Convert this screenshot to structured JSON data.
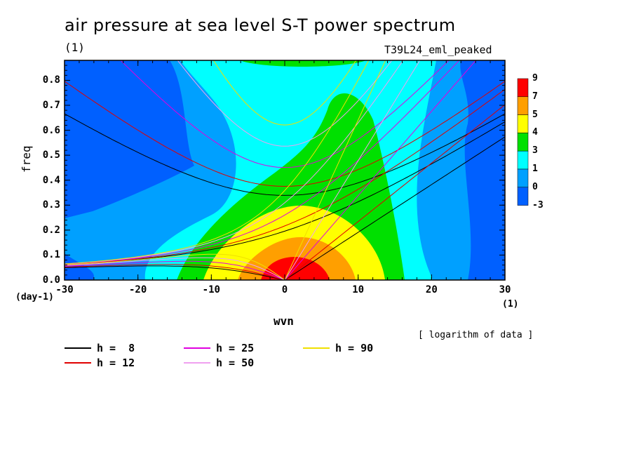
{
  "title": "air pressure at sea level S-T power spectrum",
  "title_unit": "(1)",
  "experiment": "T39L24_eml_peaked",
  "note": "[ logarithm of data ]",
  "chart_data": {
    "type": "contour",
    "xlabel": "wvn",
    "xunit": "(1)",
    "ylabel": "freq",
    "yunit": "(day-1)",
    "xlim": [
      -30,
      30
    ],
    "ylim": [
      0,
      0.88
    ],
    "xticks": [
      -30,
      -20,
      -10,
      0,
      10,
      20,
      30
    ],
    "yticks": [
      0.0,
      0.1,
      0.2,
      0.3,
      0.4,
      0.5,
      0.6,
      0.7,
      0.8
    ],
    "colorbar": {
      "labels": [
        "9",
        "7",
        "5",
        "4",
        "3",
        "1",
        "0",
        "-3"
      ],
      "colors": [
        "#ff0000",
        "#ff9f00",
        "#ffff00",
        "#00e000",
        "#00ffff",
        "#00a0ff",
        "#0060ff"
      ]
    },
    "dispersion_curves": [
      {
        "name": "h =  8",
        "h": 8,
        "color": "#000000"
      },
      {
        "name": "h = 12",
        "h": 12,
        "color": "#e00000"
      },
      {
        "name": "h = 25",
        "h": 25,
        "color": "#e000e0"
      },
      {
        "name": "h = 50",
        "h": 50,
        "color": "#f0a0f0"
      },
      {
        "name": "h = 90",
        "h": 90,
        "color": "#f0e000"
      }
    ]
  },
  "colors": {
    "frame": "#000000",
    "background": "#ffffff"
  }
}
